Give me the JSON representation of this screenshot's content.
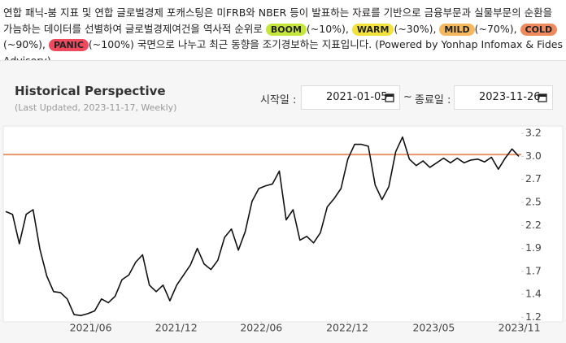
{
  "intro": {
    "text_before": "연합 패닉-붐 지표 및 연합 글로벌경제 포캐스팅은 미FRB와 NBER 등이 발표하는 자료를 기반으로 금융부문과 실물부문의 순환을 가늠하는 데이터를 선별하여 글로벌경제여건을 역사적 순위로",
    "badges": [
      {
        "label": "BOOM",
        "note": "(~10%),",
        "color": "#c5e63c"
      },
      {
        "label": "WARM",
        "note": "(~30%),",
        "color": "#f3e23c"
      },
      {
        "label": "MILD",
        "note": "(~70%),",
        "color": "#f4b85e"
      },
      {
        "label": "COLD",
        "note": "(~90%),",
        "color": "#ef8a5e"
      },
      {
        "label": "PANIC",
        "note": "(~100%)",
        "color": "#ef4a5e"
      }
    ],
    "text_after": "국면으로 나누고 최근 동향을 조기경보하는 지표입니다. (Powered by Yonhap Infomax & Fides Advisory)"
  },
  "panel": {
    "title": "Historical Perspective",
    "subtitle": "(Last Updated, 2023-11-17, Weekly)",
    "start_label": "시작일 :",
    "start_date": "2021-01-05",
    "separator": "~",
    "end_label": "종료일 :",
    "end_date": "2023-11-26"
  },
  "chart_data": {
    "type": "line",
    "color": "#111111",
    "x": [
      "2021-01-05",
      "2021-01-19",
      "2021-02-02",
      "2021-02-16",
      "2021-03-02",
      "2021-03-16",
      "2021-03-30",
      "2021-04-13",
      "2021-04-27",
      "2021-05-11",
      "2021-05-25",
      "2021-06-08",
      "2021-06-22",
      "2021-07-06",
      "2021-07-20",
      "2021-08-03",
      "2021-08-17",
      "2021-08-31",
      "2021-09-14",
      "2021-09-28",
      "2021-10-12",
      "2021-10-26",
      "2021-11-09",
      "2021-11-23",
      "2021-12-07",
      "2021-12-21",
      "2022-01-04",
      "2022-01-18",
      "2022-02-01",
      "2022-02-15",
      "2022-03-01",
      "2022-03-15",
      "2022-03-29",
      "2022-04-12",
      "2022-04-26",
      "2022-05-10",
      "2022-05-24",
      "2022-06-07",
      "2022-06-21",
      "2022-07-05",
      "2022-07-19",
      "2022-08-02",
      "2022-08-16",
      "2022-08-30",
      "2022-09-13",
      "2022-09-27",
      "2022-10-11",
      "2022-10-25",
      "2022-11-08",
      "2022-11-22",
      "2022-12-06",
      "2022-12-20",
      "2023-01-03",
      "2023-01-17",
      "2023-01-31",
      "2023-02-14",
      "2023-02-28",
      "2023-03-14",
      "2023-03-28",
      "2023-04-11",
      "2023-04-25",
      "2023-05-09",
      "2023-05-23",
      "2023-06-06",
      "2023-06-20",
      "2023-07-04",
      "2023-07-18",
      "2023-08-01",
      "2023-08-15",
      "2023-08-29",
      "2023-09-12",
      "2023-09-26",
      "2023-10-10",
      "2023-10-24",
      "2023-11-07",
      "2023-11-21"
    ],
    "values": [
      2.35,
      2.32,
      2.0,
      2.32,
      2.37,
      1.94,
      1.65,
      1.48,
      1.47,
      1.4,
      1.23,
      1.22,
      1.24,
      1.27,
      1.4,
      1.36,
      1.43,
      1.61,
      1.66,
      1.8,
      1.88,
      1.55,
      1.48,
      1.55,
      1.38,
      1.55,
      1.66,
      1.77,
      1.95,
      1.78,
      1.72,
      1.82,
      2.07,
      2.16,
      1.93,
      2.13,
      2.46,
      2.6,
      2.63,
      2.65,
      2.79,
      2.26,
      2.37,
      2.04,
      2.08,
      2.01,
      2.12,
      2.4,
      2.49,
      2.6,
      2.92,
      3.08,
      3.08,
      3.06,
      2.64,
      2.48,
      2.62,
      3.0,
      3.16,
      2.92,
      2.85,
      2.9,
      2.83,
      2.88,
      2.93,
      2.88,
      2.93,
      2.88,
      2.91,
      2.92,
      2.89,
      2.94,
      2.81,
      2.93,
      3.03,
      2.95
    ],
    "reference_line": {
      "value": 2.97,
      "color": "#e8956a"
    },
    "xlim": [
      "2021-01-05",
      "2023-11-26"
    ],
    "xticks": [
      {
        "value": "2021-06-28",
        "label": "2021/06"
      },
      {
        "value": "2021-12-20",
        "label": "2021/12"
      },
      {
        "value": "2022-06-12",
        "label": "2022/06"
      },
      {
        "value": "2022-12-05",
        "label": "2022/12"
      },
      {
        "value": "2023-05-31",
        "label": "2023/05"
      },
      {
        "value": "2023-11-22",
        "label": "2023/11"
      }
    ],
    "ylim": [
      1.16,
      3.28
    ],
    "yticks": [
      {
        "value": 1.2,
        "label": "1.2"
      },
      {
        "value": 1.45,
        "label": "1.4"
      },
      {
        "value": 1.7,
        "label": "1.7"
      },
      {
        "value": 1.95,
        "label": "1.9"
      },
      {
        "value": 2.2,
        "label": "2.2"
      },
      {
        "value": 2.45,
        "label": "2.5"
      },
      {
        "value": 2.7,
        "label": "2.7"
      },
      {
        "value": 2.95,
        "label": "3.0"
      },
      {
        "value": 3.2,
        "label": "3.2"
      }
    ]
  }
}
